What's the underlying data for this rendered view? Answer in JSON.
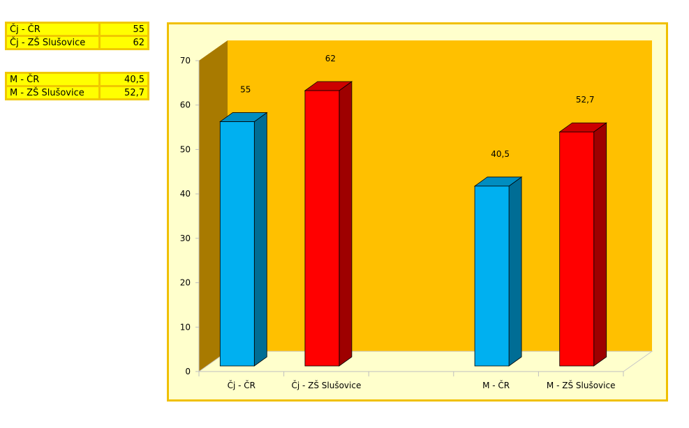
{
  "table": {
    "rows": [
      {
        "label": "Čj - ČR",
        "value": "55"
      },
      {
        "label": "Čj - ZŠ Slušovice",
        "value": "62"
      },
      {
        "label": "M - ČR",
        "value": "40,5"
      },
      {
        "label": "M - ZŠ Slušovice",
        "value": "52,7"
      }
    ]
  },
  "colors": {
    "bar_cr": "#00b0f0",
    "bar_zs": "#ff0000",
    "back_wall": "#ffc000",
    "side_wall": "#a87a00",
    "floor": "#ffffcc"
  },
  "chart_data": {
    "type": "bar",
    "title": "",
    "xlabel": "",
    "ylabel": "",
    "ylim": [
      0,
      70
    ],
    "yticks": [
      "0",
      "10",
      "20",
      "30",
      "40",
      "50",
      "60",
      "70"
    ],
    "grid": false,
    "style": "3d-column",
    "categories": [
      "Čj - ČR",
      "Čj - ZŠ Slušovice",
      "",
      "M - ČR",
      "M - ZŠ Slušovice"
    ],
    "values": [
      55,
      62,
      null,
      40.5,
      52.7
    ],
    "data_labels": [
      "55",
      "62",
      "",
      "40,5",
      "52,7"
    ],
    "bar_colors": [
      "#00b0f0",
      "#ff0000",
      "",
      "#00b0f0",
      "#ff0000"
    ]
  }
}
